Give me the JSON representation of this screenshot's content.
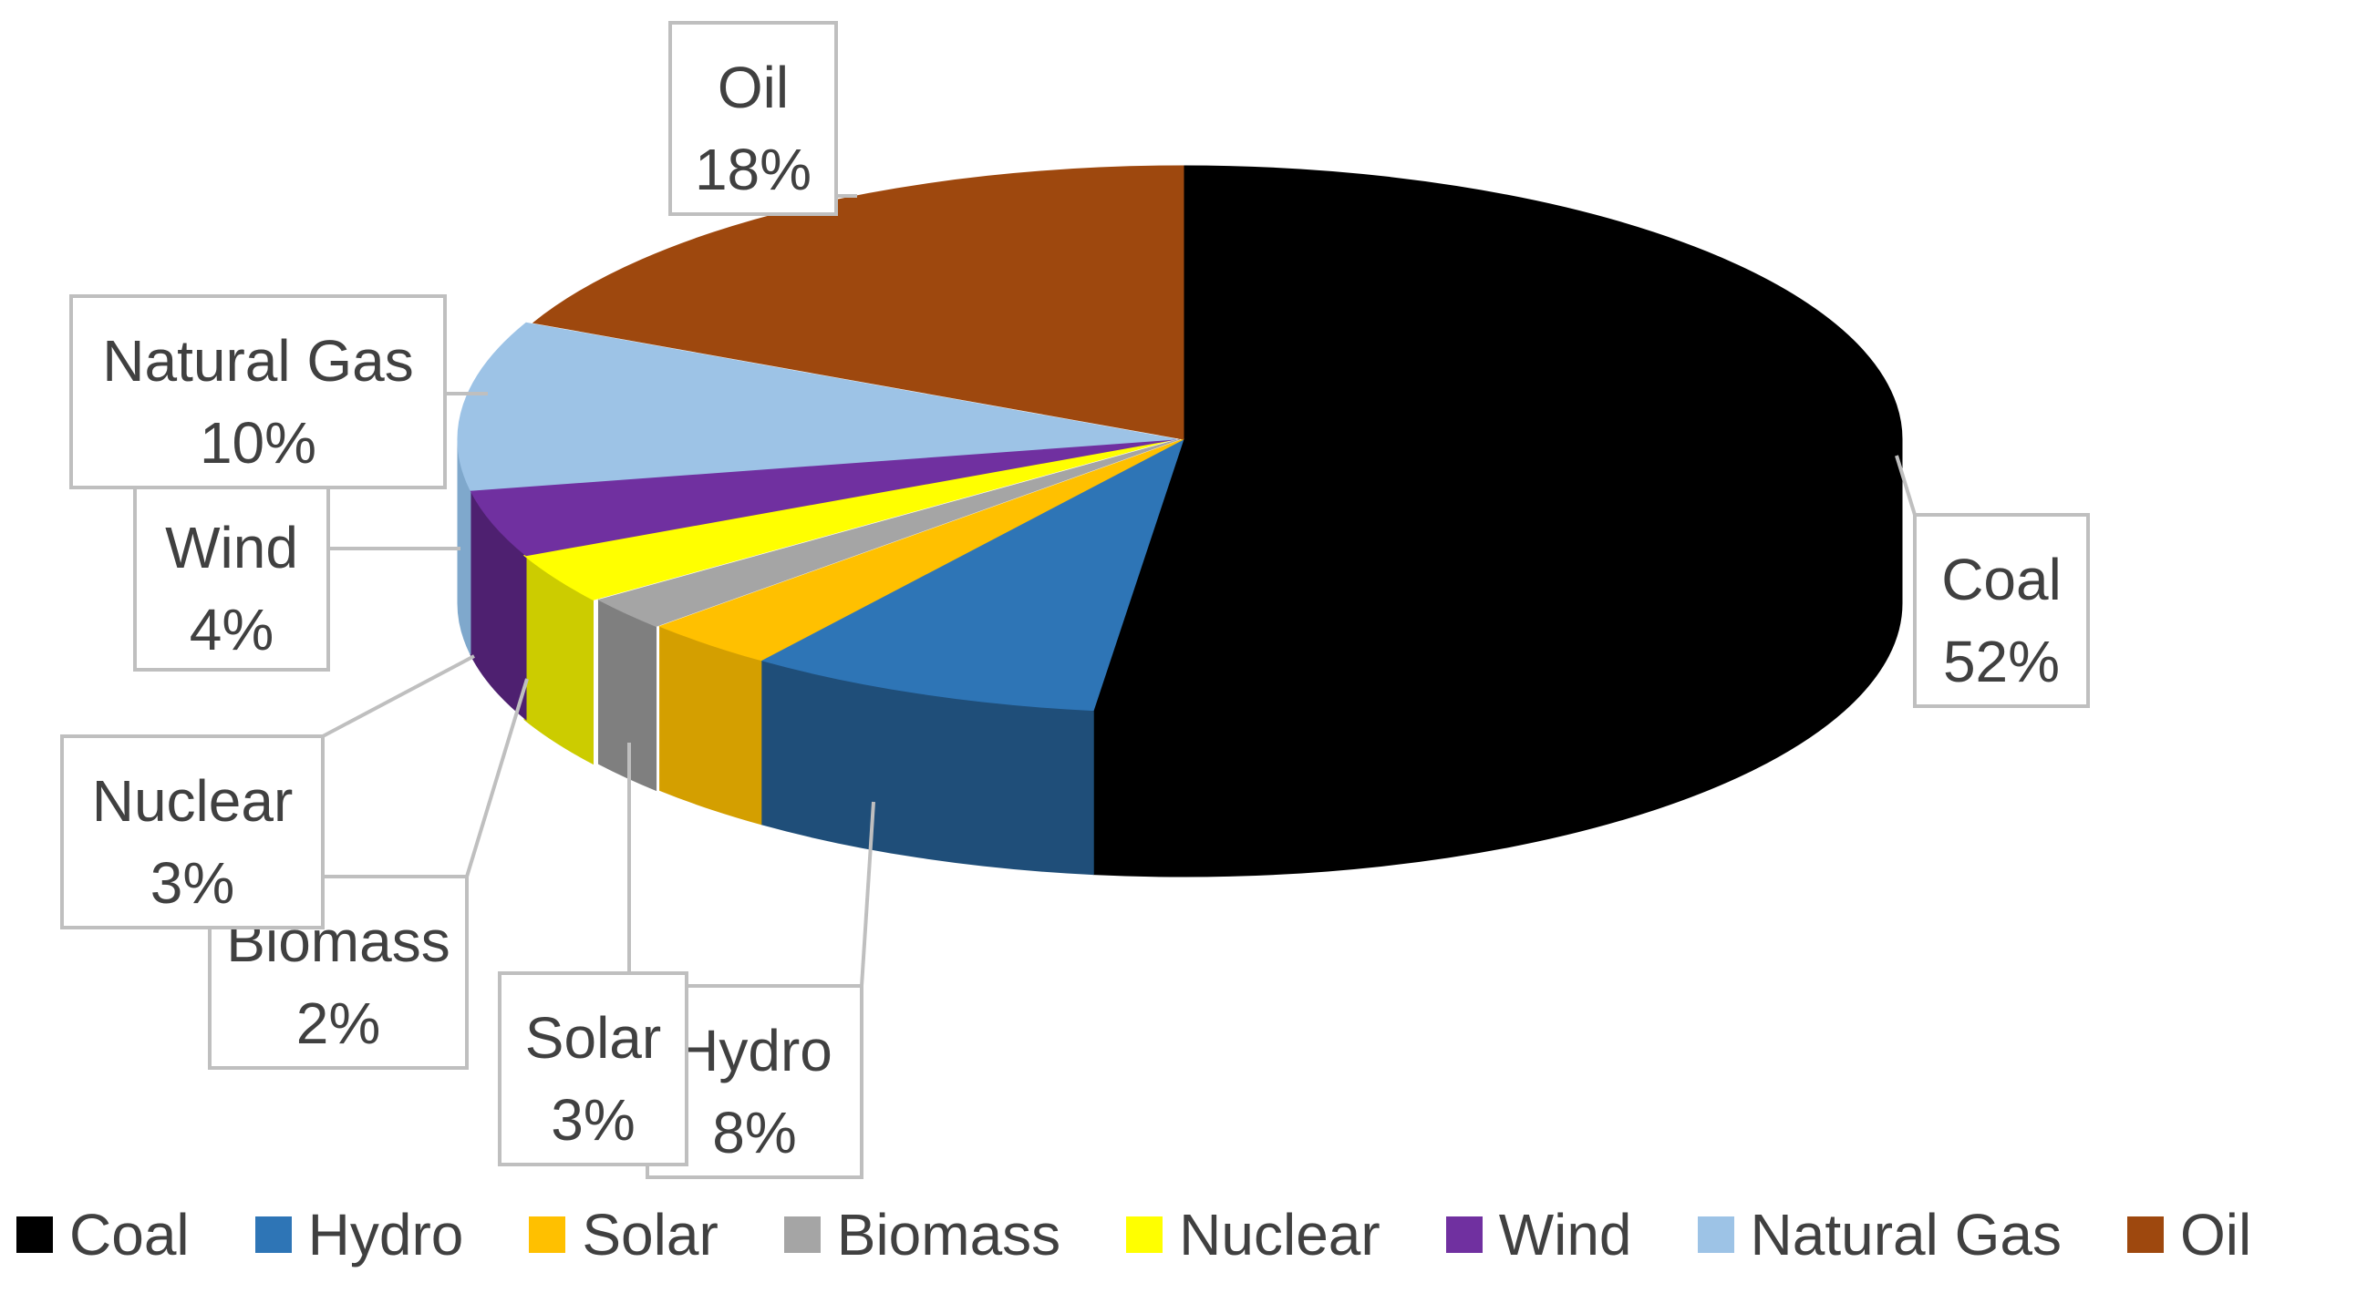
{
  "chart_data": {
    "type": "pie",
    "style": "3d-exploded",
    "title": "",
    "slices": [
      {
        "label": "Coal",
        "percent_label": "52%",
        "value": 52,
        "color": "#000000",
        "side_color": "#000000"
      },
      {
        "label": "Hydro",
        "percent_label": "8%",
        "value": 8,
        "color": "#2E75B6",
        "side_color": "#1F4E79"
      },
      {
        "label": "Solar",
        "percent_label": "3%",
        "value": 3,
        "color": "#FFC000",
        "side_color": "#D49F00"
      },
      {
        "label": "Biomass",
        "percent_label": "2%",
        "value": 2,
        "color": "#A5A5A5",
        "side_color": "#7F7F7F"
      },
      {
        "label": "Nuclear",
        "percent_label": "3%",
        "value": 3,
        "color": "#FFFF00",
        "side_color": "#CCCC00"
      },
      {
        "label": "Wind",
        "percent_label": "4%",
        "value": 4,
        "color": "#7030A0",
        "side_color": "#4E2070"
      },
      {
        "label": "Natural Gas",
        "percent_label": "10%",
        "value": 10,
        "color": "#9DC3E6",
        "side_color": "#7FA8CC"
      },
      {
        "label": "Oil",
        "percent_label": "18%",
        "value": 18,
        "color": "#9E480E",
        "side_color": "#7A360A"
      }
    ],
    "legend": {
      "position": "bottom",
      "items": [
        "Coal",
        "Hydro",
        "Solar",
        "Biomass",
        "Nuclear",
        "Wind",
        "Natural Gas",
        "Oil"
      ]
    }
  }
}
